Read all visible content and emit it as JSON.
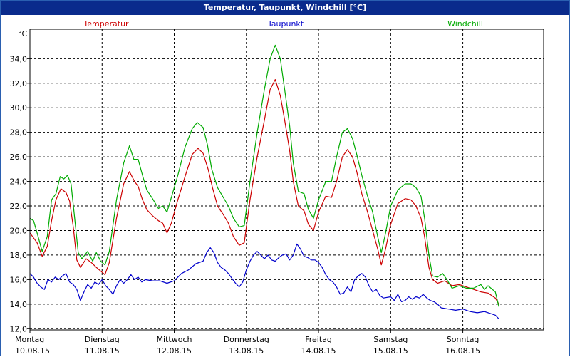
{
  "window": {
    "title": "Temperatur, Taupunkt, Windchill [°C]"
  },
  "chart_data": {
    "type": "line",
    "title": "Temperatur, Taupunkt, Windchill [°C]",
    "ylabel": "°C",
    "ylim": [
      11.9,
      36.4
    ],
    "xlim": [
      0,
      7.12
    ],
    "grid": true,
    "y_ticks": [
      "12,0",
      "14,0",
      "16,0",
      "18,0",
      "20,0",
      "22,0",
      "24,0",
      "26,0",
      "28,0",
      "30,0",
      "32,0",
      "34,0"
    ],
    "x_ticks": [
      {
        "day": "Montag",
        "date": "10.08.15"
      },
      {
        "day": "Dienstag",
        "date": "11.08.15"
      },
      {
        "day": "Mittwoch",
        "date": "12.08.15"
      },
      {
        "day": "Donnerstag",
        "date": "13.08.15"
      },
      {
        "day": "Freitag",
        "date": "14.08.15"
      },
      {
        "day": "Samstag",
        "date": "15.08.15"
      },
      {
        "day": "Sonntag",
        "date": "16.08.15"
      }
    ],
    "series": [
      {
        "name": "Temperatur",
        "color": "#cc0000",
        "points": [
          [
            0,
            19.8
          ],
          [
            0.05,
            19.4
          ],
          [
            0.1,
            19.0
          ],
          [
            0.17,
            17.9
          ],
          [
            0.24,
            18.7
          ],
          [
            0.3,
            20.8
          ],
          [
            0.36,
            22.5
          ],
          [
            0.43,
            23.4
          ],
          [
            0.5,
            23.1
          ],
          [
            0.55,
            22.4
          ],
          [
            0.6,
            20.3
          ],
          [
            0.65,
            17.6
          ],
          [
            0.7,
            17.0
          ],
          [
            0.78,
            17.7
          ],
          [
            0.85,
            17.4
          ],
          [
            0.92,
            17.0
          ],
          [
            0.98,
            16.7
          ],
          [
            1.04,
            16.4
          ],
          [
            1.1,
            17.4
          ],
          [
            1.2,
            21.0
          ],
          [
            1.3,
            23.8
          ],
          [
            1.38,
            24.8
          ],
          [
            1.45,
            24.0
          ],
          [
            1.5,
            23.6
          ],
          [
            1.56,
            22.5
          ],
          [
            1.62,
            21.7
          ],
          [
            1.7,
            21.2
          ],
          [
            1.78,
            20.8
          ],
          [
            1.84,
            20.6
          ],
          [
            1.9,
            19.8
          ],
          [
            1.96,
            20.6
          ],
          [
            2.05,
            22.5
          ],
          [
            2.15,
            24.4
          ],
          [
            2.25,
            26.2
          ],
          [
            2.33,
            26.7
          ],
          [
            2.4,
            26.3
          ],
          [
            2.47,
            25.0
          ],
          [
            2.53,
            23.5
          ],
          [
            2.6,
            22.0
          ],
          [
            2.68,
            21.3
          ],
          [
            2.75,
            20.6
          ],
          [
            2.82,
            19.5
          ],
          [
            2.9,
            18.8
          ],
          [
            2.97,
            19.0
          ],
          [
            3.05,
            22.5
          ],
          [
            3.15,
            26.0
          ],
          [
            3.25,
            29.0
          ],
          [
            3.33,
            31.5
          ],
          [
            3.4,
            32.3
          ],
          [
            3.47,
            31.0
          ],
          [
            3.53,
            29.0
          ],
          [
            3.6,
            26.5
          ],
          [
            3.65,
            24.0
          ],
          [
            3.72,
            22.0
          ],
          [
            3.8,
            21.6
          ],
          [
            3.86,
            20.5
          ],
          [
            3.93,
            20.0
          ],
          [
            4.0,
            21.5
          ],
          [
            4.1,
            22.8
          ],
          [
            4.18,
            22.7
          ],
          [
            4.25,
            24.0
          ],
          [
            4.33,
            26.0
          ],
          [
            4.4,
            26.6
          ],
          [
            4.47,
            26.0
          ],
          [
            4.53,
            24.8
          ],
          [
            4.6,
            23.0
          ],
          [
            4.68,
            21.5
          ],
          [
            4.75,
            20.0
          ],
          [
            4.82,
            18.5
          ],
          [
            4.87,
            17.2
          ],
          [
            4.93,
            18.5
          ],
          [
            5.0,
            20.5
          ],
          [
            5.1,
            22.2
          ],
          [
            5.2,
            22.6
          ],
          [
            5.28,
            22.5
          ],
          [
            5.35,
            22.0
          ],
          [
            5.42,
            21.0
          ],
          [
            5.47,
            19.5
          ],
          [
            5.53,
            17.0
          ],
          [
            5.58,
            16.0
          ],
          [
            5.65,
            15.7
          ],
          [
            5.75,
            15.9
          ],
          [
            5.85,
            15.5
          ],
          [
            5.95,
            15.6
          ],
          [
            6.05,
            15.4
          ],
          [
            6.15,
            15.2
          ],
          [
            6.25,
            15.0
          ],
          [
            6.35,
            14.9
          ],
          [
            6.45,
            14.5
          ],
          [
            6.5,
            14.0
          ]
        ]
      },
      {
        "name": "Taupunkt",
        "color": "#0000cc",
        "points": [
          [
            0,
            16.5
          ],
          [
            0.05,
            16.2
          ],
          [
            0.1,
            15.7
          ],
          [
            0.15,
            15.4
          ],
          [
            0.2,
            15.2
          ],
          [
            0.25,
            16.0
          ],
          [
            0.3,
            15.8
          ],
          [
            0.35,
            16.2
          ],
          [
            0.4,
            16.0
          ],
          [
            0.45,
            16.3
          ],
          [
            0.5,
            16.5
          ],
          [
            0.55,
            15.8
          ],
          [
            0.6,
            15.6
          ],
          [
            0.65,
            15.2
          ],
          [
            0.7,
            14.3
          ],
          [
            0.75,
            15.0
          ],
          [
            0.8,
            15.6
          ],
          [
            0.85,
            15.3
          ],
          [
            0.9,
            15.8
          ],
          [
            0.95,
            15.6
          ],
          [
            1.0,
            16.0
          ],
          [
            1.05,
            15.5
          ],
          [
            1.1,
            15.2
          ],
          [
            1.15,
            14.8
          ],
          [
            1.2,
            15.5
          ],
          [
            1.25,
            16.0
          ],
          [
            1.3,
            15.7
          ],
          [
            1.35,
            16.0
          ],
          [
            1.4,
            16.4
          ],
          [
            1.45,
            16.0
          ],
          [
            1.5,
            16.2
          ],
          [
            1.55,
            15.8
          ],
          [
            1.6,
            16.0
          ],
          [
            1.7,
            15.9
          ],
          [
            1.8,
            15.9
          ],
          [
            1.9,
            15.7
          ],
          [
            2.0,
            15.9
          ],
          [
            2.1,
            16.5
          ],
          [
            2.2,
            16.8
          ],
          [
            2.3,
            17.3
          ],
          [
            2.4,
            17.5
          ],
          [
            2.45,
            18.2
          ],
          [
            2.5,
            18.6
          ],
          [
            2.55,
            18.2
          ],
          [
            2.6,
            17.4
          ],
          [
            2.65,
            17.0
          ],
          [
            2.7,
            16.8
          ],
          [
            2.75,
            16.5
          ],
          [
            2.8,
            16.1
          ],
          [
            2.85,
            15.7
          ],
          [
            2.9,
            15.4
          ],
          [
            2.95,
            15.8
          ],
          [
            3.0,
            16.8
          ],
          [
            3.05,
            17.5
          ],
          [
            3.1,
            18.0
          ],
          [
            3.15,
            18.3
          ],
          [
            3.2,
            18.0
          ],
          [
            3.25,
            17.7
          ],
          [
            3.3,
            18.0
          ],
          [
            3.35,
            17.6
          ],
          [
            3.4,
            17.5
          ],
          [
            3.45,
            17.8
          ],
          [
            3.5,
            18.0
          ],
          [
            3.55,
            18.1
          ],
          [
            3.6,
            17.6
          ],
          [
            3.65,
            18.0
          ],
          [
            3.7,
            18.9
          ],
          [
            3.75,
            18.5
          ],
          [
            3.8,
            17.9
          ],
          [
            3.85,
            17.8
          ],
          [
            3.9,
            17.6
          ],
          [
            3.95,
            17.6
          ],
          [
            4.0,
            17.4
          ],
          [
            4.05,
            17.0
          ],
          [
            4.1,
            16.4
          ],
          [
            4.15,
            16.0
          ],
          [
            4.2,
            15.8
          ],
          [
            4.25,
            15.4
          ],
          [
            4.3,
            14.8
          ],
          [
            4.35,
            14.9
          ],
          [
            4.4,
            15.4
          ],
          [
            4.45,
            15.0
          ],
          [
            4.5,
            16.0
          ],
          [
            4.55,
            16.3
          ],
          [
            4.6,
            16.5
          ],
          [
            4.65,
            16.2
          ],
          [
            4.7,
            15.5
          ],
          [
            4.75,
            15.0
          ],
          [
            4.8,
            15.2
          ],
          [
            4.85,
            14.7
          ],
          [
            4.9,
            14.5
          ],
          [
            5.0,
            14.6
          ],
          [
            5.05,
            14.3
          ],
          [
            5.1,
            14.8
          ],
          [
            5.15,
            14.2
          ],
          [
            5.2,
            14.3
          ],
          [
            5.25,
            14.6
          ],
          [
            5.3,
            14.4
          ],
          [
            5.35,
            14.6
          ],
          [
            5.4,
            14.5
          ],
          [
            5.45,
            14.8
          ],
          [
            5.5,
            14.5
          ],
          [
            5.55,
            14.3
          ],
          [
            5.6,
            14.2
          ],
          [
            5.65,
            14.0
          ],
          [
            5.7,
            13.7
          ],
          [
            5.8,
            13.6
          ],
          [
            5.9,
            13.5
          ],
          [
            6.0,
            13.6
          ],
          [
            6.1,
            13.4
          ],
          [
            6.2,
            13.3
          ],
          [
            6.3,
            13.4
          ],
          [
            6.4,
            13.2
          ],
          [
            6.45,
            13.1
          ],
          [
            6.5,
            12.8
          ]
        ]
      },
      {
        "name": "Windchill",
        "color": "#00aa00",
        "points": [
          [
            0,
            21.0
          ],
          [
            0.05,
            20.8
          ],
          [
            0.1,
            19.8
          ],
          [
            0.17,
            18.3
          ],
          [
            0.24,
            19.5
          ],
          [
            0.3,
            22.5
          ],
          [
            0.36,
            23.0
          ],
          [
            0.42,
            24.4
          ],
          [
            0.47,
            24.2
          ],
          [
            0.52,
            24.5
          ],
          [
            0.57,
            23.8
          ],
          [
            0.62,
            21.0
          ],
          [
            0.67,
            18.2
          ],
          [
            0.72,
            17.7
          ],
          [
            0.8,
            18.3
          ],
          [
            0.87,
            17.5
          ],
          [
            0.92,
            18.2
          ],
          [
            0.98,
            17.5
          ],
          [
            1.04,
            17.2
          ],
          [
            1.1,
            18.3
          ],
          [
            1.2,
            22.5
          ],
          [
            1.3,
            25.5
          ],
          [
            1.38,
            26.9
          ],
          [
            1.44,
            25.8
          ],
          [
            1.5,
            25.8
          ],
          [
            1.56,
            24.5
          ],
          [
            1.62,
            23.3
          ],
          [
            1.7,
            22.6
          ],
          [
            1.78,
            21.8
          ],
          [
            1.84,
            22.0
          ],
          [
            1.9,
            21.5
          ],
          [
            1.96,
            22.7
          ],
          [
            2.05,
            24.5
          ],
          [
            2.15,
            26.8
          ],
          [
            2.25,
            28.3
          ],
          [
            2.32,
            28.8
          ],
          [
            2.4,
            28.4
          ],
          [
            2.46,
            27.0
          ],
          [
            2.52,
            25.0
          ],
          [
            2.6,
            23.5
          ],
          [
            2.68,
            22.7
          ],
          [
            2.75,
            22.0
          ],
          [
            2.82,
            21.0
          ],
          [
            2.9,
            20.3
          ],
          [
            2.97,
            20.4
          ],
          [
            3.05,
            24.0
          ],
          [
            3.15,
            28.0
          ],
          [
            3.25,
            31.5
          ],
          [
            3.33,
            34.0
          ],
          [
            3.4,
            35.1
          ],
          [
            3.47,
            34.0
          ],
          [
            3.53,
            31.5
          ],
          [
            3.6,
            28.5
          ],
          [
            3.65,
            25.5
          ],
          [
            3.72,
            23.2
          ],
          [
            3.8,
            23.0
          ],
          [
            3.86,
            21.7
          ],
          [
            3.93,
            21.0
          ],
          [
            4.0,
            22.5
          ],
          [
            4.1,
            24.0
          ],
          [
            4.18,
            24.0
          ],
          [
            4.25,
            26.0
          ],
          [
            4.33,
            28.0
          ],
          [
            4.4,
            28.3
          ],
          [
            4.47,
            27.5
          ],
          [
            4.53,
            26.2
          ],
          [
            4.6,
            24.5
          ],
          [
            4.68,
            22.8
          ],
          [
            4.75,
            21.5
          ],
          [
            4.82,
            19.5
          ],
          [
            4.87,
            18.2
          ],
          [
            4.93,
            19.8
          ],
          [
            5.0,
            22.0
          ],
          [
            5.1,
            23.3
          ],
          [
            5.2,
            23.8
          ],
          [
            5.28,
            23.8
          ],
          [
            5.35,
            23.5
          ],
          [
            5.42,
            22.8
          ],
          [
            5.47,
            21.0
          ],
          [
            5.53,
            18.0
          ],
          [
            5.58,
            16.3
          ],
          [
            5.65,
            16.2
          ],
          [
            5.72,
            16.5
          ],
          [
            5.78,
            16.0
          ],
          [
            5.85,
            15.3
          ],
          [
            5.95,
            15.5
          ],
          [
            6.05,
            15.3
          ],
          [
            6.15,
            15.3
          ],
          [
            6.25,
            15.6
          ],
          [
            6.3,
            15.2
          ],
          [
            6.35,
            15.5
          ],
          [
            6.45,
            15.0
          ],
          [
            6.5,
            13.8
          ]
        ]
      }
    ]
  }
}
